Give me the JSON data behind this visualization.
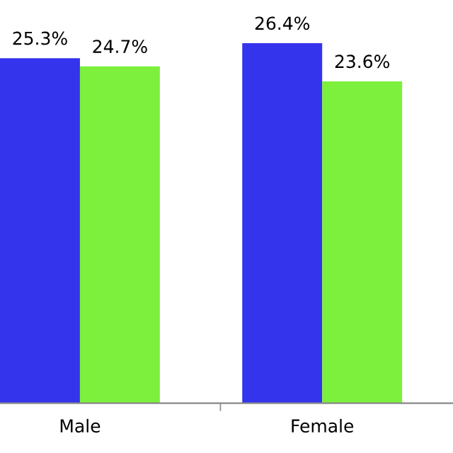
{
  "chart_data": {
    "type": "bar",
    "categories": [
      "Male",
      "Female"
    ],
    "series": [
      {
        "color": "#3434ec",
        "values": [
          25.3,
          26.4
        ],
        "value_labels": [
          "25.3%",
          "26.4%"
        ]
      },
      {
        "color": "#7cf03c",
        "values": [
          24.7,
          23.6
        ],
        "value_labels": [
          "24.7%",
          "23.6%"
        ]
      }
    ],
    "tick_labels": "x",
    "grid": false,
    "legend": false
  }
}
